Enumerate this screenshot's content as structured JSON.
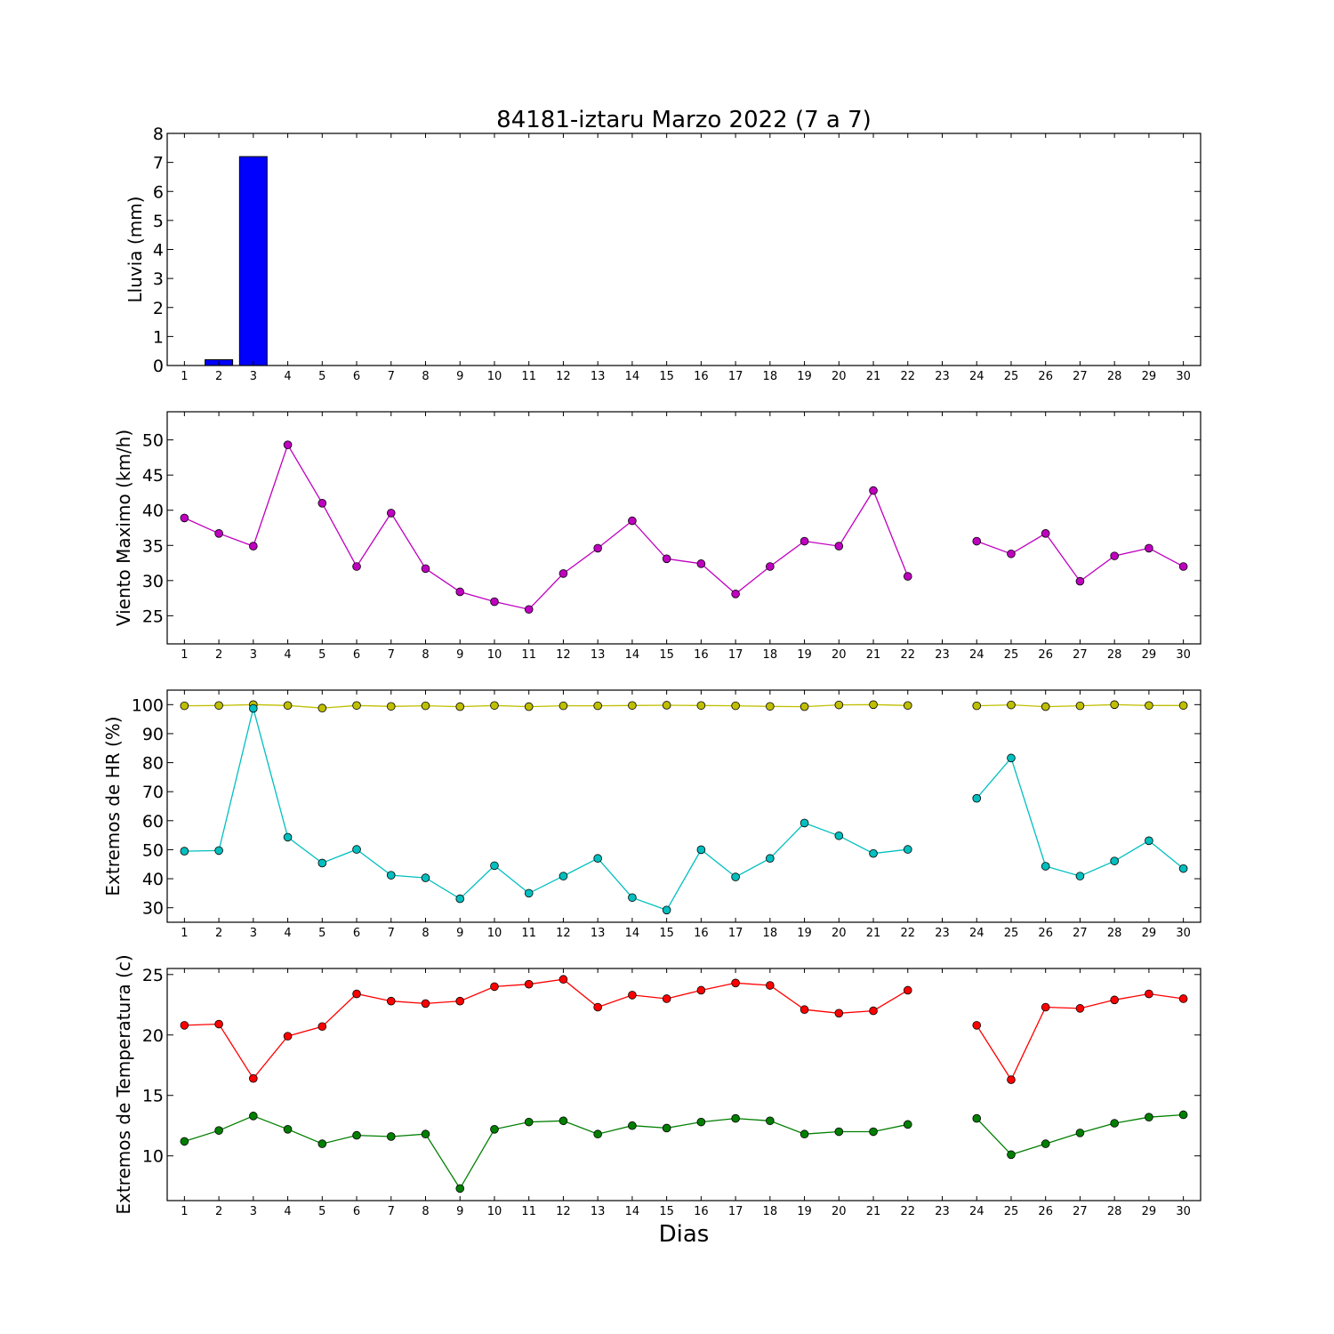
{
  "chart_data": [
    {
      "type": "bar",
      "title": "84181-iztaru Marzo 2022  (7 a 7)",
      "ylabel": "Lluvia (mm)",
      "xlabel": "",
      "ylim": [
        0,
        8
      ],
      "yticks": [
        0,
        1,
        2,
        3,
        4,
        5,
        6,
        7,
        8
      ],
      "x": [
        1,
        2,
        3,
        4,
        5,
        6,
        7,
        8,
        9,
        10,
        11,
        12,
        13,
        14,
        15,
        16,
        17,
        18,
        19,
        20,
        21,
        22,
        23,
        24,
        25,
        26,
        27,
        28,
        29,
        30
      ],
      "xtick_labels": [
        "1",
        "2",
        "3",
        "4",
        "5",
        "6",
        "7",
        "8",
        "9",
        "10",
        "11",
        "12",
        "13",
        "14",
        "15",
        "16",
        "17",
        "18",
        "19",
        "20",
        "21",
        "22",
        "23",
        "24",
        "25",
        "26",
        "27",
        "28",
        "29",
        "30"
      ],
      "values": [
        0,
        0.2,
        7.2,
        0,
        0,
        0,
        0,
        0,
        0,
        0,
        0,
        0,
        0,
        0,
        0,
        0,
        0,
        0,
        0,
        0,
        0,
        0,
        null,
        0,
        0,
        0,
        0,
        0,
        0,
        0
      ],
      "color": "#0000ff"
    },
    {
      "type": "line",
      "ylabel": "Viento Maximo (km/h)",
      "xlabel": "",
      "ylim": [
        21,
        54
      ],
      "yticks": [
        25,
        30,
        35,
        40,
        45,
        50
      ],
      "x": [
        1,
        2,
        3,
        4,
        5,
        6,
        7,
        8,
        9,
        10,
        11,
        12,
        13,
        14,
        15,
        16,
        17,
        18,
        19,
        20,
        21,
        22,
        23,
        24,
        25,
        26,
        27,
        28,
        29,
        30
      ],
      "xtick_labels": [
        "1",
        "2",
        "3",
        "4",
        "5",
        "6",
        "7",
        "8",
        "9",
        "10",
        "11",
        "12",
        "13",
        "14",
        "15",
        "16",
        "17",
        "18",
        "19",
        "20",
        "21",
        "22",
        "23",
        "24",
        "25",
        "26",
        "27",
        "28",
        "29",
        "30"
      ],
      "series": [
        {
          "color": "#bf00bf",
          "values": [
            38.9,
            36.7,
            34.9,
            49.3,
            41.0,
            32.0,
            39.6,
            31.7,
            28.4,
            27.0,
            25.9,
            31.0,
            34.6,
            38.5,
            33.1,
            32.4,
            28.1,
            32.0,
            35.6,
            34.9,
            42.8,
            30.6,
            null,
            35.6,
            33.8,
            36.7,
            29.9,
            33.5,
            34.6,
            32.0
          ]
        }
      ]
    },
    {
      "type": "line",
      "ylabel": "Extremos de HR (%)",
      "xlabel": "",
      "ylim": [
        25,
        105
      ],
      "yticks": [
        30,
        40,
        50,
        60,
        70,
        80,
        90,
        100
      ],
      "x": [
        1,
        2,
        3,
        4,
        5,
        6,
        7,
        8,
        9,
        10,
        11,
        12,
        13,
        14,
        15,
        16,
        17,
        18,
        19,
        20,
        21,
        22,
        23,
        24,
        25,
        26,
        27,
        28,
        29,
        30
      ],
      "xtick_labels": [
        "1",
        "2",
        "3",
        "4",
        "5",
        "6",
        "7",
        "8",
        "9",
        "10",
        "11",
        "12",
        "13",
        "14",
        "15",
        "16",
        "17",
        "18",
        "19",
        "20",
        "21",
        "22",
        "23",
        "24",
        "25",
        "26",
        "27",
        "28",
        "29",
        "30"
      ],
      "series": [
        {
          "color": "#bfbf00",
          "values": [
            99.6,
            99.7,
            100,
            99.7,
            98.8,
            99.7,
            99.4,
            99.6,
            99.3,
            99.7,
            99.3,
            99.6,
            99.6,
            99.7,
            99.8,
            99.7,
            99.6,
            99.4,
            99.3,
            99.9,
            100,
            99.7,
            null,
            99.6,
            99.9,
            99.3,
            99.6,
            100,
            99.7,
            99.7
          ]
        },
        {
          "color": "#00bfbf",
          "values": [
            49.5,
            49.7,
            98.7,
            54.3,
            45.4,
            50.1,
            41.2,
            40.3,
            33.1,
            44.5,
            35.0,
            40.9,
            47.0,
            33.5,
            29.2,
            50.0,
            40.6,
            47.0,
            59.2,
            54.8,
            48.7,
            50.1,
            null,
            67.7,
            81.6,
            44.3,
            40.9,
            46.1,
            53.1,
            43.5
          ]
        }
      ]
    },
    {
      "type": "line",
      "ylabel": "Extremos de Temperatura (c)",
      "xlabel": "Dias",
      "ylim": [
        6.3,
        25.5
      ],
      "yticks": [
        10,
        15,
        20,
        25
      ],
      "x": [
        1,
        2,
        3,
        4,
        5,
        6,
        7,
        8,
        9,
        10,
        11,
        12,
        13,
        14,
        15,
        16,
        17,
        18,
        19,
        20,
        21,
        22,
        23,
        24,
        25,
        26,
        27,
        28,
        29,
        30
      ],
      "xtick_labels": [
        "1",
        "2",
        "3",
        "4",
        "5",
        "6",
        "7",
        "8",
        "9",
        "10",
        "11",
        "12",
        "13",
        "14",
        "15",
        "16",
        "17",
        "18",
        "19",
        "20",
        "21",
        "22",
        "23",
        "24",
        "25",
        "26",
        "27",
        "28",
        "29",
        "30"
      ],
      "series": [
        {
          "color": "#ff0000",
          "values": [
            20.8,
            20.9,
            16.4,
            19.9,
            20.7,
            23.4,
            22.8,
            22.6,
            22.8,
            24.0,
            24.2,
            24.6,
            22.3,
            23.3,
            23.0,
            23.7,
            24.3,
            24.1,
            22.1,
            21.8,
            22.0,
            23.7,
            null,
            20.8,
            16.3,
            22.3,
            22.2,
            22.9,
            23.4,
            23.0
          ]
        },
        {
          "color": "#007f00",
          "values": [
            11.2,
            12.1,
            13.3,
            12.2,
            11.0,
            11.7,
            11.6,
            11.8,
            7.3,
            12.2,
            12.8,
            12.9,
            11.8,
            12.5,
            12.3,
            12.8,
            13.1,
            12.9,
            11.8,
            12.0,
            12.0,
            12.6,
            null,
            13.1,
            10.1,
            11.0,
            11.9,
            12.7,
            13.2,
            13.4
          ]
        }
      ]
    }
  ]
}
